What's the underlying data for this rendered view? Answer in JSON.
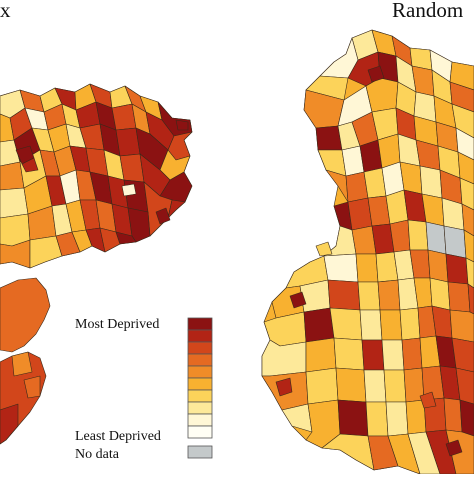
{
  "panels": {
    "left": {
      "label": "x"
    },
    "right": {
      "label": "Random"
    }
  },
  "legend": {
    "most_label": "Most Deprived",
    "least_label": "Least Deprived",
    "nodata_label": "No data",
    "classes": [
      "#8b1212",
      "#b22415",
      "#d2461b",
      "#e56a22",
      "#f08c28",
      "#f8b130",
      "#fcd35a",
      "#fde99a",
      "#fff7d6",
      "#fffef4"
    ],
    "nodata_color": "#c4c9ca"
  },
  "palette": {
    "boundary": "#3a2a1a",
    "background": "#ffffff"
  }
}
